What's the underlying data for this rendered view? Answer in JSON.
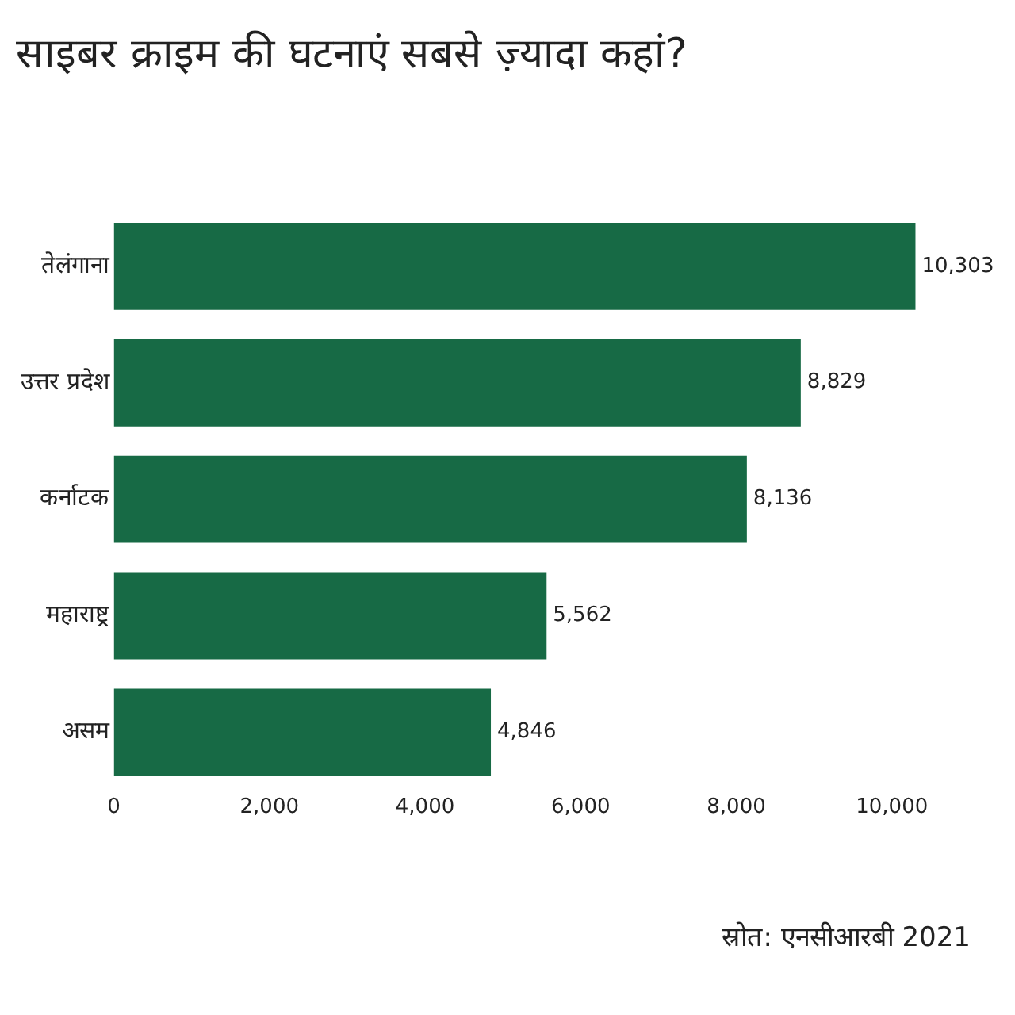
{
  "chart_data": {
    "type": "bar",
    "orientation": "horizontal",
    "title": "साइबर क्राइम की घटनाएं सबसे ज़्यादा कहां?",
    "categories": [
      "तेलंगाना",
      "उत्तर प्रदेश",
      "कर्नाटक",
      "महाराष्ट्र",
      "असम"
    ],
    "values": [
      10303,
      8829,
      8136,
      5562,
      4846
    ],
    "value_labels": [
      "10,303",
      "8,829",
      "8,136",
      "5,562",
      "4,846"
    ],
    "color": "#176a45",
    "xlim": [
      0,
      10400
    ],
    "xticks": [
      0,
      {
        "value": 2000,
        "label": "2,000"
      },
      {
        "value": 4000,
        "label": "4,000"
      },
      {
        "value": 6000,
        "label": "6,000"
      },
      {
        "value": 8000,
        "label": "8,000"
      },
      {
        "value": 10000,
        "label": "10,000"
      }
    ],
    "grid": false,
    "annotations": [
      "स्रोत: एनसीआरबी 2021"
    ]
  }
}
